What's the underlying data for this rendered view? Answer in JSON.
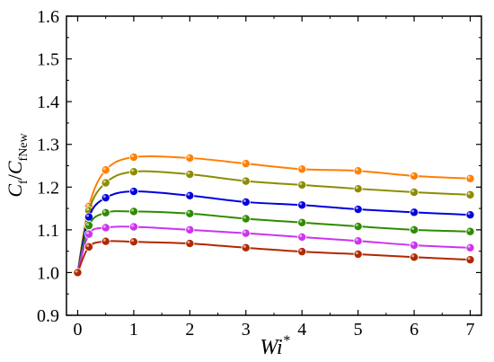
{
  "chart_data": {
    "type": "line",
    "xlabel": {
      "main": "Wi",
      "sup": "*"
    },
    "ylabel": {
      "c1": "C",
      "s1": "f",
      "slash": "/",
      "c2": "C",
      "s2": "fNew"
    },
    "xlim": [
      -0.2,
      7.2
    ],
    "ylim": [
      0.9,
      1.6
    ],
    "xticks": [
      0,
      1,
      2,
      3,
      4,
      5,
      6,
      7
    ],
    "yticks": [
      0.9,
      1.0,
      1.1,
      1.2,
      1.3,
      1.4,
      1.5,
      1.6
    ],
    "xtick_labels": [
      "0",
      "1",
      "2",
      "3",
      "4",
      "5",
      "6",
      "7"
    ],
    "ytick_labels": [
      "0.9",
      "1.0",
      "1.1",
      "1.2",
      "1.3",
      "1.4",
      "1.5",
      "1.6"
    ],
    "grid": false,
    "x": [
      0,
      0.2,
      0.5,
      1,
      2,
      3,
      4,
      5,
      6,
      7
    ],
    "series": [
      {
        "color": "#ff7f00",
        "values": [
          1.0,
          1.155,
          1.24,
          1.27,
          1.268,
          1.255,
          1.242,
          1.238,
          1.226,
          1.22
        ]
      },
      {
        "color": "#8c8c00",
        "values": [
          1.0,
          1.145,
          1.21,
          1.236,
          1.23,
          1.214,
          1.205,
          1.196,
          1.188,
          1.182
        ]
      },
      {
        "color": "#0000dd",
        "values": [
          1.0,
          1.13,
          1.175,
          1.19,
          1.18,
          1.165,
          1.158,
          1.148,
          1.141,
          1.135
        ]
      },
      {
        "color": "#2e8b00",
        "values": [
          1.0,
          1.11,
          1.14,
          1.143,
          1.138,
          1.126,
          1.117,
          1.108,
          1.1,
          1.096
        ]
      },
      {
        "color": "#cc33ee",
        "values": [
          1.0,
          1.09,
          1.105,
          1.107,
          1.1,
          1.092,
          1.083,
          1.074,
          1.064,
          1.058
        ]
      },
      {
        "color": "#b02800",
        "values": [
          1.0,
          1.06,
          1.073,
          1.072,
          1.068,
          1.058,
          1.049,
          1.043,
          1.036,
          1.03
        ]
      }
    ]
  }
}
